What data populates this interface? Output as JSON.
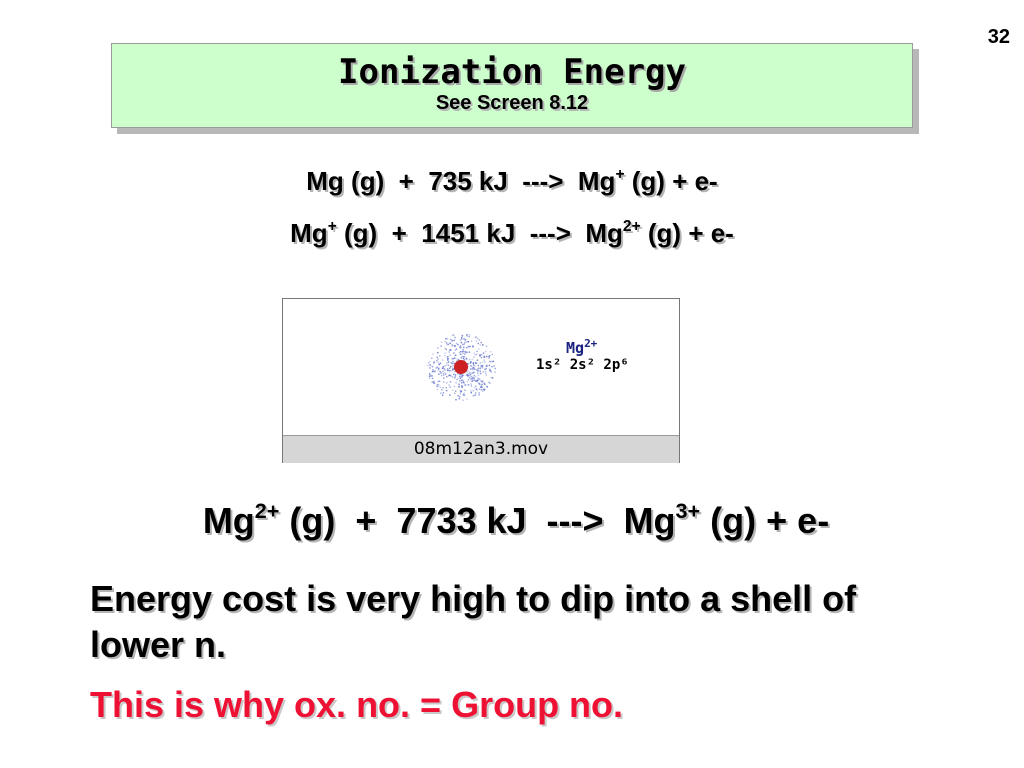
{
  "page_number": "32",
  "title": {
    "main": "Ionization Energy",
    "sub": "See Screen 8.12"
  },
  "equations": [
    {
      "reactant": "Mg",
      "reactant_charge": "",
      "mid": " (g)  +  735 kJ  --->  ",
      "product": "Mg",
      "product_charge": "+",
      "tail": " (g) + e-"
    },
    {
      "reactant": "Mg",
      "reactant_charge": "+",
      "mid": " (g)  +  1451 kJ  --->  ",
      "product": "Mg",
      "product_charge": "2+",
      "tail": " (g) + e-"
    },
    {
      "reactant": "Mg",
      "reactant_charge": "2+",
      "mid": " (g)  +  7733 kJ  --->  ",
      "product": "Mg",
      "product_charge": "3+",
      "tail": " (g) + e-"
    }
  ],
  "movie": {
    "ion_symbol": "Mg",
    "ion_charge": "2+",
    "configuration": "1s² 2s² 2p⁶",
    "filename": "08m12an3.mov",
    "colors": {
      "nucleus": "#cc2222",
      "cloud": "#6677cc"
    }
  },
  "statement": "Energy cost is very high to dip into a shell of lower n.",
  "conclusion": "This is why ox. no. = Group no.",
  "colors": {
    "title_bg": "#ccffcc",
    "conclusion": "#ee1133"
  }
}
